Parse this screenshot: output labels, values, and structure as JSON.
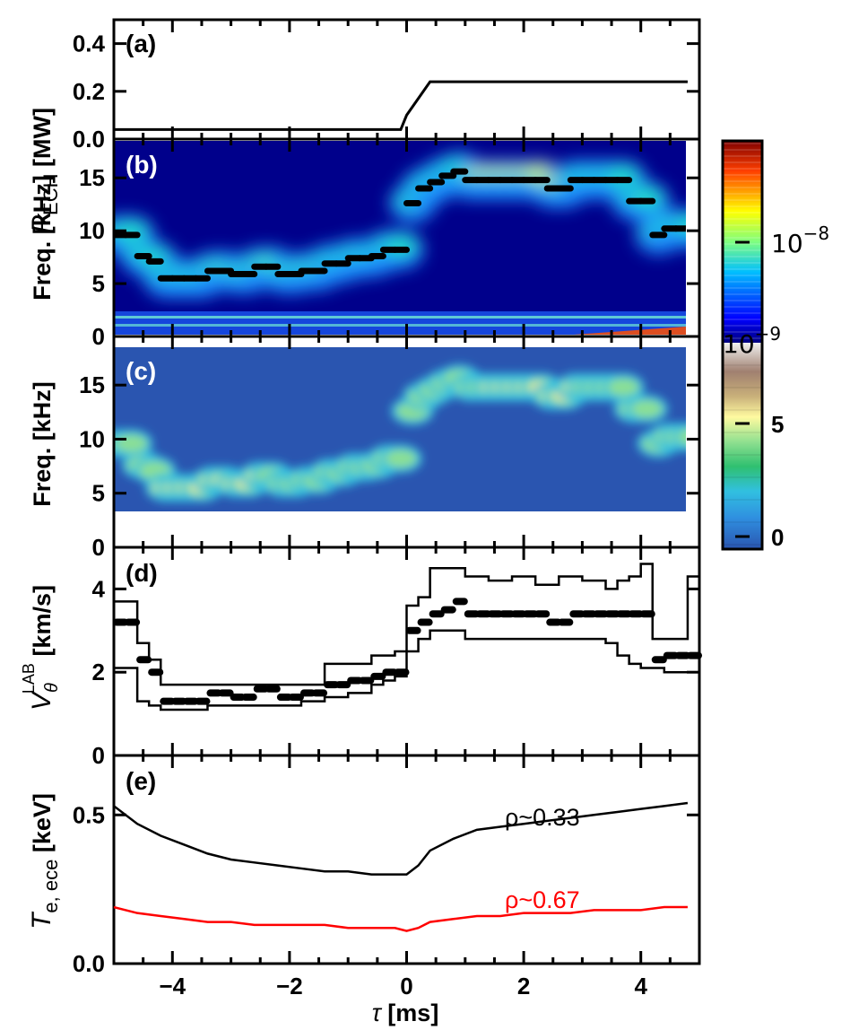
{
  "figure": {
    "xlabel_tau": "τ",
    "xlabel_unit": " [ms]"
  },
  "chart_data": [
    {
      "panel": "a",
      "type": "line",
      "letter": "(a)",
      "ylabel_sym": "P",
      "ylabel_sub": "ECH",
      "ylabel_unit": " [MW]",
      "xlim": [
        -5,
        5
      ],
      "ylim": [
        0,
        0.5
      ],
      "x_ticks": [
        -4,
        -2,
        0,
        2,
        4
      ],
      "y_ticks": [
        0.0,
        0.2,
        0.4
      ],
      "y_tick_labels": [
        "0.0",
        "0.2",
        "0.4"
      ],
      "series": [
        {
          "x": [
            -5,
            -0.1,
            0.0,
            0.4,
            4.8
          ],
          "y": [
            0.04,
            0.04,
            0.1,
            0.24,
            0.24
          ],
          "color": "#000000"
        }
      ]
    },
    {
      "panel": "b",
      "type": "heatmap",
      "letter": "(b)",
      "ylabel": "Freq. [kHz]",
      "xlim": [
        -5,
        5
      ],
      "ylim": [
        0,
        18.5
      ],
      "x_ticks": [
        -4,
        -2,
        0,
        2,
        4
      ],
      "y_ticks": [
        0,
        5,
        10,
        15
      ],
      "y_tick_labels": [
        "0",
        "5",
        "10",
        "15"
      ],
      "colorscale": "jet (log)",
      "colorbar_labels": [
        {
          "base": "10",
          "exp": "−8"
        },
        {
          "base": "10",
          "exp": "−9"
        }
      ],
      "ridge_x": [
        -5.0,
        -4.8,
        -4.6,
        -4.4,
        -4.2,
        -4.0,
        -3.8,
        -3.6,
        -3.4,
        -3.2,
        -3.0,
        -2.8,
        -2.6,
        -2.4,
        -2.2,
        -2.0,
        -1.8,
        -1.6,
        -1.4,
        -1.2,
        -1.0,
        -0.8,
        -0.6,
        -0.4,
        -0.2,
        0.0,
        0.2,
        0.4,
        0.6,
        0.8,
        1.0,
        1.2,
        1.4,
        1.6,
        1.8,
        2.0,
        2.2,
        2.4,
        2.6,
        2.8,
        3.0,
        3.2,
        3.4,
        3.6,
        3.8,
        4.0,
        4.2,
        4.4,
        4.6,
        4.8
      ],
      "ridge_freq": [
        9.6,
        9.6,
        7.6,
        7.1,
        5.5,
        5.5,
        5.5,
        5.5,
        6.2,
        6.2,
        5.9,
        5.9,
        6.6,
        6.6,
        5.9,
        5.9,
        6.2,
        6.2,
        6.9,
        6.9,
        7.4,
        7.4,
        7.6,
        8.2,
        8.2,
        12.6,
        14.0,
        14.6,
        15.2,
        15.6,
        14.8,
        14.8,
        14.8,
        14.8,
        14.8,
        14.8,
        14.8,
        14.0,
        14.0,
        14.8,
        14.8,
        14.8,
        14.8,
        14.8,
        12.8,
        12.8,
        9.6,
        10.2,
        10.2,
        10.2
      ]
    },
    {
      "panel": "c",
      "type": "heatmap",
      "letter": "(c)",
      "ylabel": "Freq. [kHz]",
      "xlim": [
        -5,
        5
      ],
      "ylim": [
        0,
        18.5
      ],
      "x_ticks": [
        -4,
        -2,
        0,
        2,
        4
      ],
      "y_ticks": [
        0,
        5,
        10,
        15
      ],
      "y_tick_labels": [
        "0",
        "5",
        "10",
        "15"
      ],
      "colorscale": "custom (linear)",
      "colorbar_labels": [
        "5",
        "0"
      ]
    },
    {
      "panel": "d",
      "type": "line",
      "letter": "(d)",
      "ylabel_sym": "V",
      "ylabel_sub": "θ",
      "ylabel_sup": "LAB",
      "ylabel_unit": " [km/s]",
      "xlim": [
        -5,
        5
      ],
      "ylim": [
        0,
        5
      ],
      "x_ticks": [
        -4,
        -2,
        0,
        2,
        4
      ],
      "y_ticks": [
        0,
        2,
        4
      ],
      "y_tick_labels": [
        "0",
        "2",
        "4"
      ],
      "x": [
        -5.0,
        -4.8,
        -4.6,
        -4.4,
        -4.2,
        -4.0,
        -3.8,
        -3.6,
        -3.4,
        -3.2,
        -3.0,
        -2.8,
        -2.6,
        -2.4,
        -2.2,
        -2.0,
        -1.8,
        -1.6,
        -1.4,
        -1.2,
        -1.0,
        -0.8,
        -0.6,
        -0.4,
        -0.2,
        0.0,
        0.2,
        0.4,
        0.6,
        0.8,
        1.0,
        1.2,
        1.4,
        1.6,
        1.8,
        2.0,
        2.2,
        2.4,
        2.6,
        2.8,
        3.0,
        3.2,
        3.4,
        3.6,
        3.8,
        4.0,
        4.2,
        4.4,
        4.6,
        4.8
      ],
      "v_mean": [
        3.2,
        3.2,
        2.3,
        2.0,
        1.3,
        1.3,
        1.3,
        1.3,
        1.5,
        1.5,
        1.4,
        1.4,
        1.6,
        1.6,
        1.4,
        1.4,
        1.5,
        1.5,
        1.7,
        1.7,
        1.8,
        1.8,
        1.9,
        2.0,
        2.0,
        3.0,
        3.2,
        3.4,
        3.5,
        3.7,
        3.4,
        3.4,
        3.4,
        3.4,
        3.4,
        3.4,
        3.4,
        3.2,
        3.2,
        3.4,
        3.4,
        3.4,
        3.4,
        3.4,
        3.4,
        3.4,
        2.3,
        2.4,
        2.4,
        2.4
      ],
      "v_upper": [
        3.7,
        3.7,
        2.7,
        2.3,
        1.7,
        1.7,
        1.7,
        1.7,
        1.7,
        1.7,
        1.7,
        1.7,
        1.7,
        1.7,
        1.7,
        1.7,
        1.7,
        1.7,
        2.2,
        2.2,
        2.2,
        2.2,
        2.4,
        2.4,
        2.5,
        3.6,
        3.8,
        4.5,
        4.5,
        4.5,
        4.3,
        4.3,
        4.2,
        4.2,
        4.3,
        4.3,
        4.1,
        4.1,
        4.3,
        4.3,
        4.2,
        4.2,
        4.0,
        4.2,
        4.3,
        4.6,
        2.8,
        2.8,
        2.8,
        4.3
      ],
      "v_lower": [
        2.1,
        2.1,
        1.3,
        1.2,
        1.1,
        1.1,
        1.1,
        1.1,
        1.2,
        1.2,
        1.2,
        1.2,
        1.2,
        1.2,
        1.2,
        1.2,
        1.3,
        1.3,
        1.4,
        1.4,
        1.5,
        1.5,
        1.7,
        1.8,
        1.9,
        2.5,
        2.8,
        3.0,
        3.0,
        3.0,
        2.8,
        2.8,
        2.8,
        2.8,
        2.8,
        2.8,
        2.8,
        2.8,
        2.8,
        2.8,
        2.8,
        2.8,
        2.7,
        2.4,
        2.2,
        2.1,
        2.1,
        2.0,
        2.0,
        2.0
      ]
    },
    {
      "panel": "e",
      "type": "line",
      "letter": "(e)",
      "ylabel_sym": "T",
      "ylabel_sub": "e, ece",
      "ylabel_unit": " [keV]",
      "xlim": [
        -5,
        5
      ],
      "ylim": [
        0,
        0.7
      ],
      "x_ticks": [
        -4,
        -2,
        0,
        2,
        4
      ],
      "x_tick_labels": [
        "−4",
        "−2",
        "0",
        "2",
        "4"
      ],
      "y_ticks": [
        0.0,
        0.5
      ],
      "y_tick_labels": [
        "0.0",
        "0.5"
      ],
      "series": [
        {
          "name": "ρ~0.33",
          "color": "#000000",
          "x": [
            -5.0,
            -4.6,
            -4.2,
            -3.8,
            -3.4,
            -3.0,
            -2.6,
            -2.2,
            -1.8,
            -1.4,
            -1.0,
            -0.6,
            -0.2,
            0.0,
            0.2,
            0.4,
            0.8,
            1.2,
            1.6,
            2.0,
            2.4,
            2.8,
            3.2,
            3.6,
            4.0,
            4.4,
            4.8
          ],
          "y": [
            0.53,
            0.47,
            0.43,
            0.4,
            0.37,
            0.35,
            0.34,
            0.33,
            0.32,
            0.31,
            0.31,
            0.3,
            0.3,
            0.3,
            0.33,
            0.38,
            0.42,
            0.45,
            0.46,
            0.47,
            0.48,
            0.49,
            0.5,
            0.51,
            0.52,
            0.53,
            0.54
          ]
        },
        {
          "name": "ρ~0.67",
          "color": "#ff0000",
          "x": [
            -5.0,
            -4.6,
            -4.2,
            -3.8,
            -3.4,
            -3.0,
            -2.6,
            -2.2,
            -1.8,
            -1.4,
            -1.0,
            -0.6,
            -0.2,
            0.0,
            0.2,
            0.4,
            0.8,
            1.2,
            1.6,
            2.0,
            2.4,
            2.8,
            3.2,
            3.6,
            4.0,
            4.4,
            4.8
          ],
          "y": [
            0.19,
            0.17,
            0.16,
            0.15,
            0.14,
            0.14,
            0.13,
            0.13,
            0.13,
            0.13,
            0.12,
            0.12,
            0.12,
            0.11,
            0.12,
            0.14,
            0.15,
            0.16,
            0.16,
            0.17,
            0.17,
            0.17,
            0.18,
            0.18,
            0.18,
            0.19,
            0.19
          ]
        }
      ]
    }
  ]
}
